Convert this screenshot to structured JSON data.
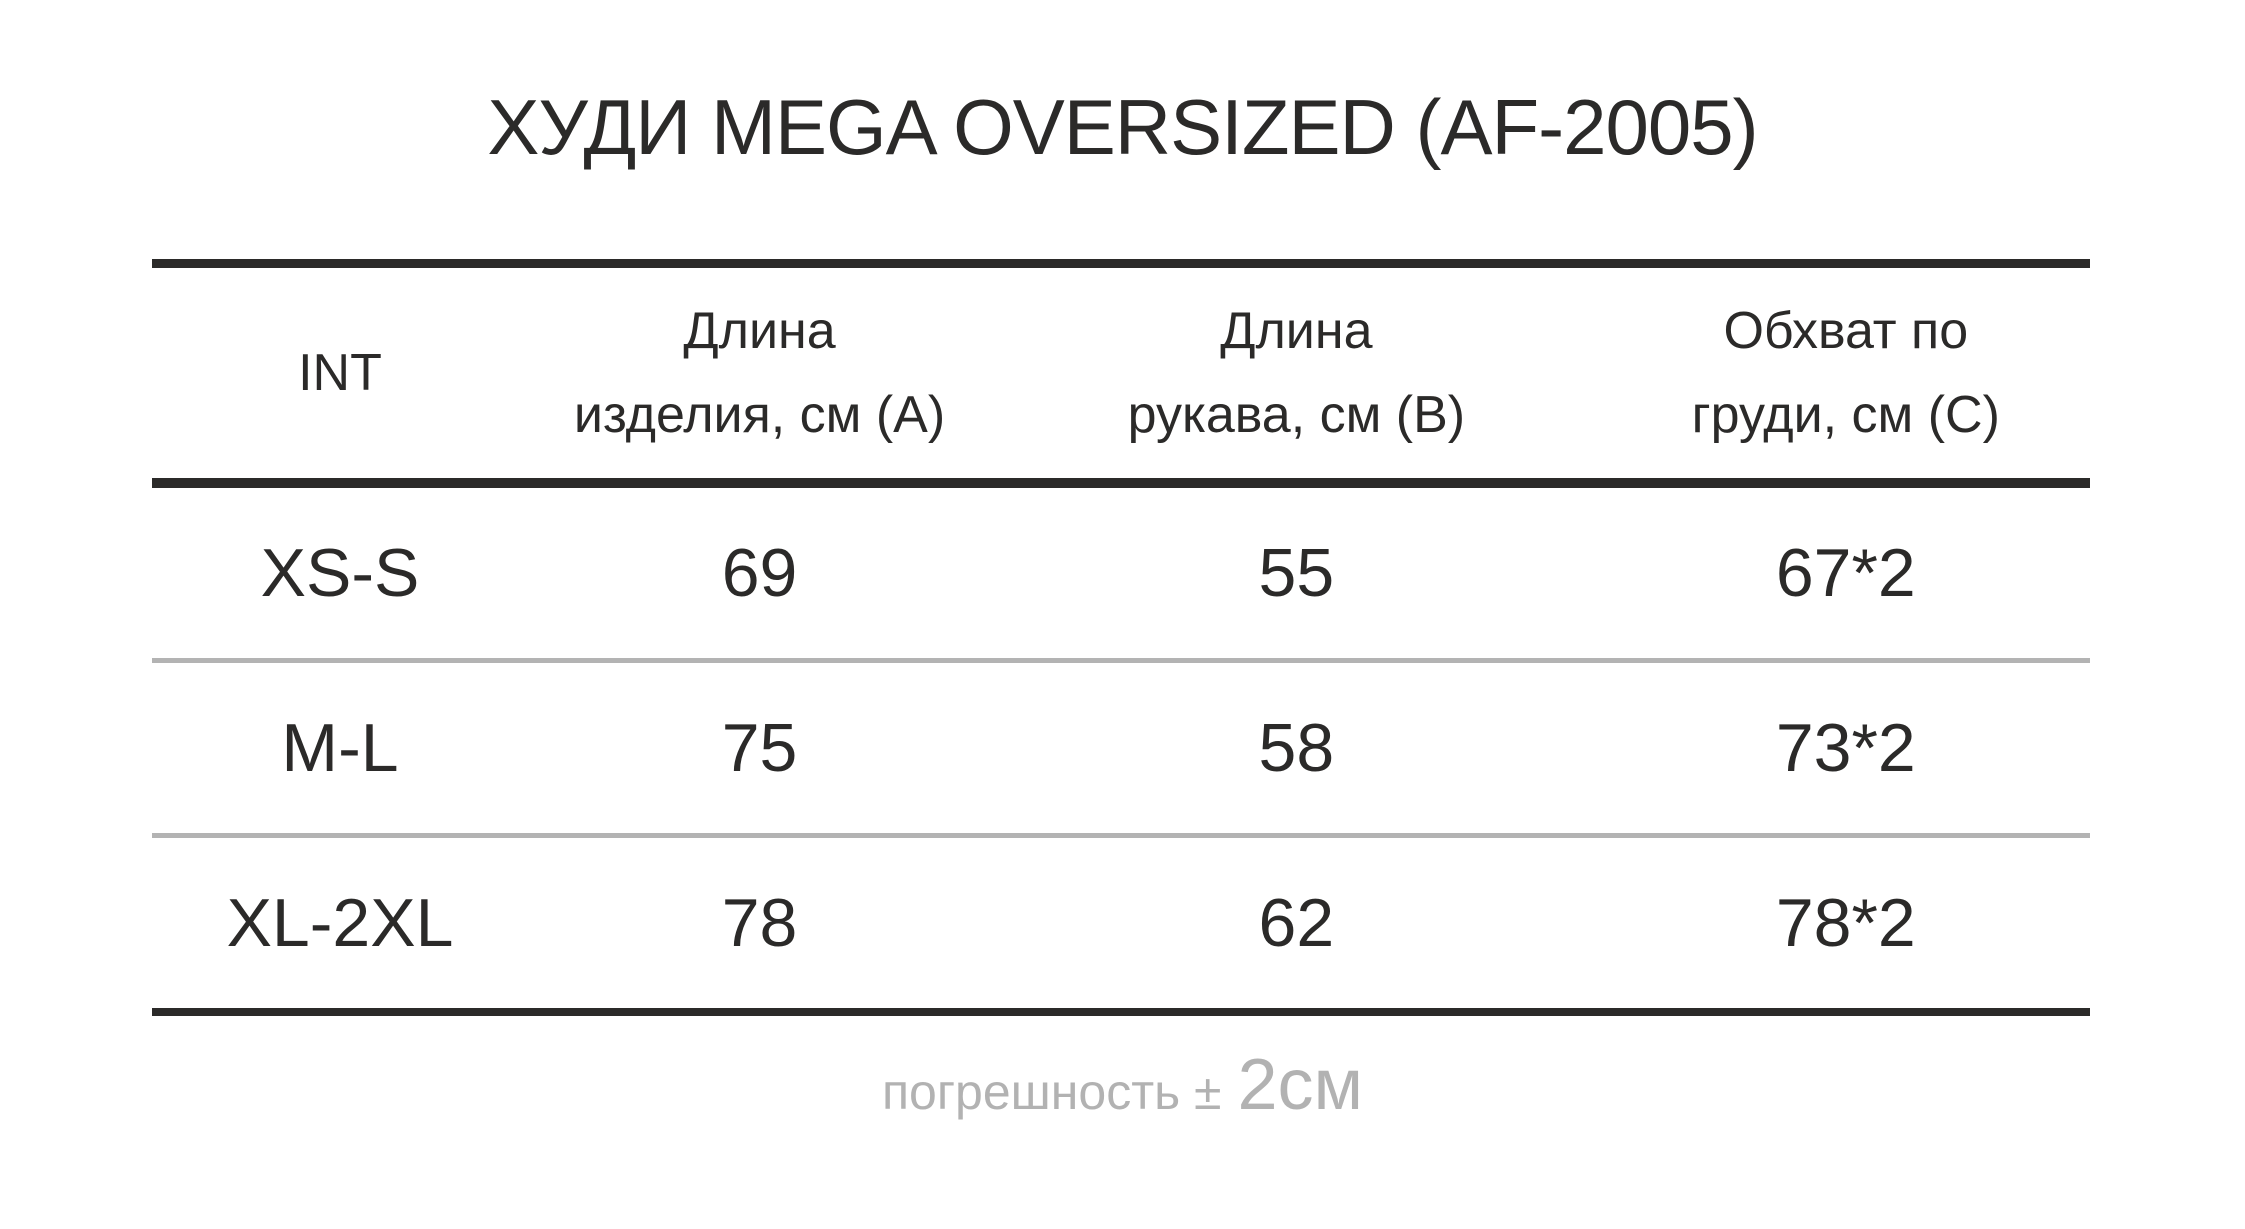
{
  "title": "ХУДИ MEGA OVERSIZED (AF-2005)",
  "table": {
    "columns": [
      "INT",
      "Длина\nизделия, см (A)",
      "Длина\nрукава, см (B)",
      "Обхват по\nгруди, см (C)"
    ],
    "rows": [
      [
        "XS-S",
        "69",
        "55",
        "67*2"
      ],
      [
        "M-L",
        "75",
        "58",
        "73*2"
      ],
      [
        "XL-2XL",
        "78",
        "62",
        "78*2"
      ]
    ]
  },
  "footer": {
    "prefix": "погрешность ±",
    "value": "2см"
  },
  "colors": {
    "text": "#2b2a29",
    "thick_rule": "#2b2a29",
    "thin_rule": "#b3b3b3",
    "footnote_gray": "#b2b2b2",
    "background": "#ffffff"
  },
  "chart_data": {
    "type": "table",
    "title": "ХУДИ MEGA OVERSIZED (AF-2005)",
    "columns": [
      "INT",
      "Длина изделия, см (A)",
      "Длина рукава, см (B)",
      "Обхват по груди, см (C)"
    ],
    "rows": [
      {
        "INT": "XS-S",
        "length_cm_A": 69,
        "sleeve_cm_B": 55,
        "chest_cm_C": "67*2"
      },
      {
        "INT": "M-L",
        "length_cm_A": 75,
        "sleeve_cm_B": 58,
        "chest_cm_C": "73*2"
      },
      {
        "INT": "XL-2XL",
        "length_cm_A": 78,
        "sleeve_cm_B": 62,
        "chest_cm_C": "78*2"
      }
    ],
    "footnote": "погрешность ± 2см",
    "layout": {
      "grid": "horizontal rules only",
      "header_rule": "thick",
      "row_rule": "thin gray"
    }
  }
}
